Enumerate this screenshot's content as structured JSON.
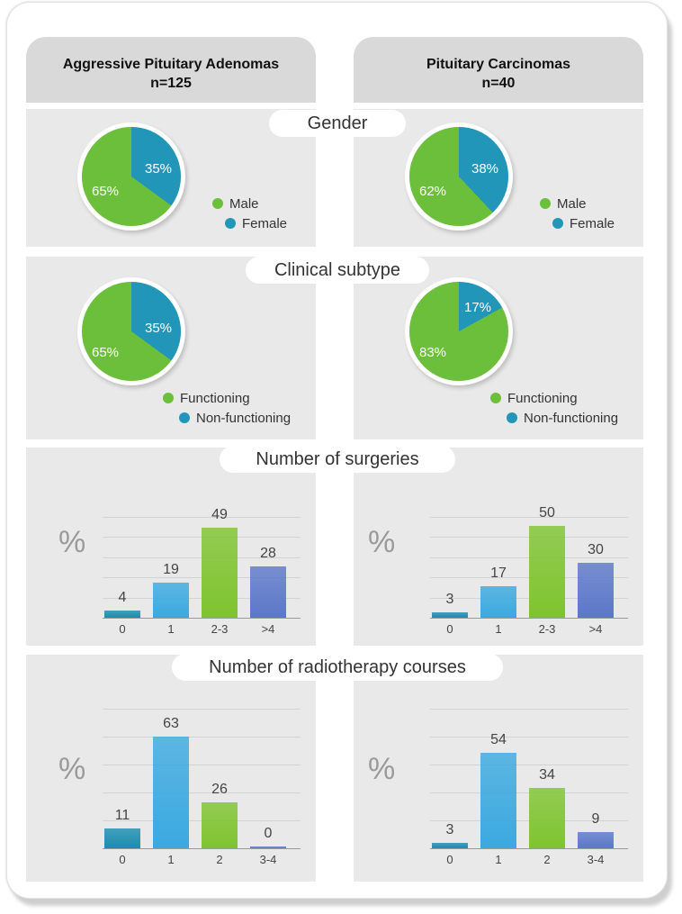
{
  "headers": [
    {
      "title": "Aggressive Pituitary Adenomas",
      "n": "n=125"
    },
    {
      "title": "Pituitary Carcinomas",
      "n": "n=40"
    }
  ],
  "sections": {
    "gender": "Gender",
    "subtype": "Clinical subtype",
    "surgeries": "Number of surgeries",
    "radiotherapy": "Number of radiotherapy courses"
  },
  "colors": {
    "green": "#6cbf3a",
    "teal": "#2196b8",
    "bar_dark_teal": "#1a8cb0",
    "bar_blue": "#3aa9e0",
    "bar_green": "#7ec42e",
    "bar_purple": "#5b77c9"
  },
  "chart_data": [
    {
      "type": "pie",
      "title": "Gender",
      "group": "Aggressive Pituitary Adenomas",
      "labels": [
        "Male",
        "Female"
      ],
      "values": [
        65,
        35
      ],
      "value_labels": [
        "65%",
        "35%"
      ]
    },
    {
      "type": "pie",
      "title": "Gender",
      "group": "Pituitary Carcinomas",
      "labels": [
        "Male",
        "Female"
      ],
      "values": [
        62,
        38
      ],
      "value_labels": [
        "62%",
        "38%"
      ]
    },
    {
      "type": "pie",
      "title": "Clinical subtype",
      "group": "Aggressive Pituitary Adenomas",
      "labels": [
        "Functioning",
        "Non-functioning"
      ],
      "values": [
        65,
        35
      ],
      "value_labels": [
        "65%",
        "35%"
      ]
    },
    {
      "type": "pie",
      "title": "Clinical subtype",
      "group": "Pituitary Carcinomas",
      "labels": [
        "Functioning",
        "Non-functioning"
      ],
      "values": [
        83,
        17
      ],
      "value_labels": [
        "83%",
        "17%"
      ]
    },
    {
      "type": "bar",
      "title": "Number of surgeries",
      "group": "Aggressive Pituitary Adenomas",
      "ylabel": "%",
      "categories": [
        "0",
        "1",
        "2-3",
        ">4"
      ],
      "values": [
        4,
        19,
        49,
        28
      ],
      "ylim": [
        0,
        55
      ]
    },
    {
      "type": "bar",
      "title": "Number of surgeries",
      "group": "Pituitary Carcinomas",
      "ylabel": "%",
      "categories": [
        "0",
        "1",
        "2-3",
        ">4"
      ],
      "values": [
        3,
        17,
        50,
        30
      ],
      "ylim": [
        0,
        55
      ]
    },
    {
      "type": "bar",
      "title": "Number of radiotherapy courses",
      "group": "Aggressive Pituitary Adenomas",
      "ylabel": "%",
      "categories": [
        "0",
        "1",
        "2",
        "3-4"
      ],
      "values": [
        11,
        63,
        26,
        0
      ],
      "ylim": [
        0,
        70
      ]
    },
    {
      "type": "bar",
      "title": "Number of radiotherapy courses",
      "group": "Pituitary Carcinomas",
      "ylabel": "%",
      "categories": [
        "0",
        "1",
        "2",
        "3-4"
      ],
      "values": [
        3,
        54,
        34,
        9
      ],
      "ylim": [
        0,
        70
      ]
    }
  ]
}
